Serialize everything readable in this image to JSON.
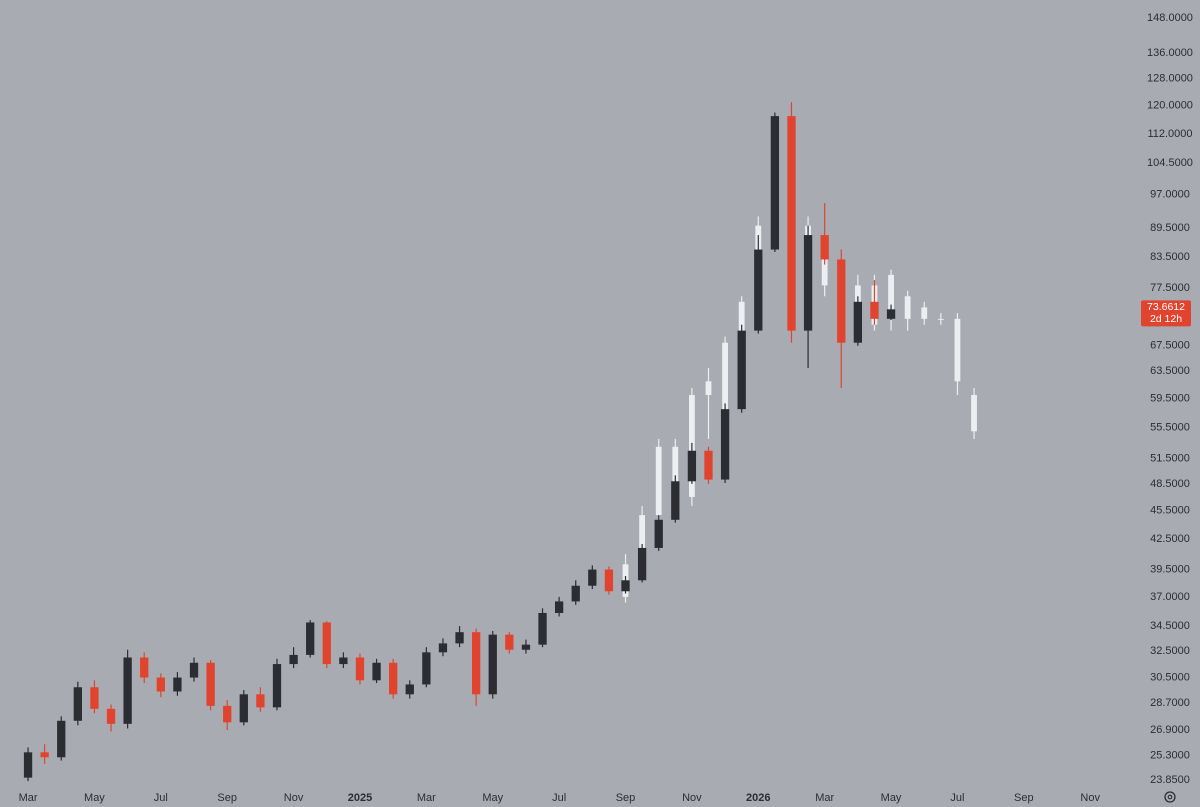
{
  "chart_data": {
    "type": "candlestick",
    "log_scale": true,
    "background": "#a9abb2",
    "ylim": [
      23.3,
      154.5
    ],
    "yticks": [
      {
        "value": 148,
        "label": "148.0000"
      },
      {
        "value": 136,
        "label": "136.0000"
      },
      {
        "value": 128,
        "label": "128.0000"
      },
      {
        "value": 120,
        "label": "120.0000"
      },
      {
        "value": 112,
        "label": "112.0000"
      },
      {
        "value": 104.5,
        "label": "104.5000"
      },
      {
        "value": 97,
        "label": "97.0000"
      },
      {
        "value": 89.5,
        "label": "89.5000"
      },
      {
        "value": 83.5,
        "label": "83.5000"
      },
      {
        "value": 77.5,
        "label": "77.5000"
      },
      {
        "value": 67.5,
        "label": "67.5000"
      },
      {
        "value": 63.5,
        "label": "63.5000"
      },
      {
        "value": 59.5,
        "label": "59.5000"
      },
      {
        "value": 55.5,
        "label": "55.5000"
      },
      {
        "value": 51.5,
        "label": "51.5000"
      },
      {
        "value": 48.5,
        "label": "48.5000"
      },
      {
        "value": 45.5,
        "label": "45.5000"
      },
      {
        "value": 42.5,
        "label": "42.5000"
      },
      {
        "value": 39.5,
        "label": "39.5000"
      },
      {
        "value": 37,
        "label": "37.0000"
      },
      {
        "value": 34.5,
        "label": "34.5000"
      },
      {
        "value": 32.5,
        "label": "32.5000"
      },
      {
        "value": 30.5,
        "label": "30.5000"
      },
      {
        "value": 28.7,
        "label": "28.7000"
      },
      {
        "value": 26.9,
        "label": "26.9000"
      },
      {
        "value": 25.3,
        "label": "25.3000"
      },
      {
        "value": 23.85,
        "label": "23.8500"
      }
    ],
    "xlim": [
      -1.69,
      67.0
    ],
    "xticks": [
      {
        "value": 0,
        "label": "Mar"
      },
      {
        "value": 4,
        "label": "May"
      },
      {
        "value": 8,
        "label": "Jul"
      },
      {
        "value": 12,
        "label": "Sep"
      },
      {
        "value": 16,
        "label": "Nov"
      },
      {
        "value": 20,
        "label": "2025"
      },
      {
        "value": 24,
        "label": "Mar"
      },
      {
        "value": 28,
        "label": "May"
      },
      {
        "value": 32,
        "label": "Jul"
      },
      {
        "value": 36,
        "label": "Sep"
      },
      {
        "value": 40,
        "label": "Nov"
      },
      {
        "value": 44,
        "label": "2026"
      },
      {
        "value": 48,
        "label": "Mar"
      },
      {
        "value": 52,
        "label": "May"
      },
      {
        "value": 56,
        "label": "Jul"
      },
      {
        "value": 60,
        "label": "Sep"
      },
      {
        "value": 64,
        "label": "Nov"
      }
    ],
    "last_price": 73.6612,
    "last_price_color": "#e0442f",
    "countdown": "2d 12h",
    "series": [
      {
        "up_color": "#2b2d33",
        "down_color": "#e0442f",
        "open": [
          24.0,
          25.5,
          25.2,
          27.5,
          29.8,
          28.3,
          27.3,
          32.0,
          30.5,
          29.5,
          30.5,
          31.6,
          28.5,
          27.4,
          29.3,
          28.4,
          31.5,
          32.2,
          34.8,
          31.5,
          32.0,
          30.3,
          31.6,
          29.3,
          30.0,
          32.4,
          33.1,
          34.0,
          29.3,
          33.8,
          32.6,
          33.0,
          35.6,
          36.6,
          38.0,
          39.5,
          37.5,
          38.5,
          41.6,
          44.5,
          48.8,
          52.5,
          49.0,
          58.0,
          70.0,
          85.0,
          117,
          70.0,
          88.0,
          83.0,
          68.0,
          75.0,
          72.0
        ],
        "high": [
          25.8,
          26.0,
          27.8,
          30.2,
          30.3,
          28.6,
          32.6,
          32.4,
          30.8,
          30.9,
          32.0,
          31.8,
          28.9,
          29.6,
          29.8,
          31.9,
          32.8,
          35.0,
          34.9,
          32.4,
          32.3,
          31.9,
          31.9,
          30.3,
          32.8,
          33.5,
          34.5,
          34.3,
          34.1,
          34.0,
          33.4,
          36.0,
          37.0,
          38.5,
          39.9,
          39.8,
          38.9,
          42.0,
          45.0,
          49.5,
          53.5,
          53.0,
          58.8,
          71.0,
          88.0,
          118,
          121,
          90.0,
          95.0,
          85.0,
          76.0,
          79.0,
          74.5
        ],
        "low": [
          23.8,
          24.8,
          25.0,
          27.2,
          28.0,
          26.8,
          27.0,
          30.1,
          29.1,
          29.2,
          30.2,
          28.2,
          26.9,
          27.2,
          28.1,
          28.2,
          31.2,
          32.0,
          31.2,
          31.2,
          30.0,
          30.1,
          29.0,
          29.0,
          29.8,
          32.1,
          32.8,
          28.5,
          29.0,
          32.3,
          32.3,
          32.8,
          35.3,
          36.3,
          37.7,
          37.2,
          37.3,
          38.3,
          41.3,
          44.2,
          48.5,
          48.5,
          48.6,
          57.5,
          69.5,
          84.5,
          68.0,
          64.0,
          82.0,
          61.0,
          67.5,
          71.0,
          71.8
        ],
        "close": [
          25.5,
          25.2,
          27.5,
          29.8,
          28.3,
          27.3,
          32.0,
          30.5,
          29.5,
          30.5,
          31.6,
          28.5,
          27.4,
          29.3,
          28.4,
          31.5,
          32.2,
          34.8,
          31.5,
          32.0,
          30.3,
          31.6,
          29.3,
          30.0,
          32.4,
          33.1,
          34.0,
          29.3,
          33.8,
          32.6,
          33.0,
          35.6,
          36.6,
          38.0,
          39.5,
          37.5,
          38.5,
          41.6,
          44.5,
          48.8,
          52.5,
          49.0,
          58.0,
          70.0,
          85.0,
          117,
          70.0,
          88.0,
          83.0,
          68.0,
          75.0,
          72.0,
          73.6612
        ]
      },
      {
        "color": "#eceef2",
        "open": [
          null,
          null,
          null,
          null,
          null,
          null,
          null,
          null,
          null,
          null,
          null,
          null,
          null,
          null,
          null,
          null,
          null,
          null,
          null,
          null,
          null,
          null,
          null,
          null,
          null,
          null,
          null,
          null,
          null,
          null,
          null,
          null,
          null,
          null,
          null,
          null,
          37,
          40,
          45,
          53,
          47,
          60,
          56,
          68,
          75,
          90,
          105,
          90,
          86,
          80,
          74,
          78,
          72,
          76,
          72,
          72,
          72,
          60
        ],
        "high": [
          null,
          null,
          null,
          null,
          null,
          null,
          null,
          null,
          null,
          null,
          null,
          null,
          null,
          null,
          null,
          null,
          null,
          null,
          null,
          null,
          null,
          null,
          null,
          null,
          null,
          null,
          null,
          null,
          null,
          null,
          null,
          null,
          null,
          null,
          null,
          null,
          41,
          46,
          54,
          54,
          61,
          64,
          69,
          76,
          92,
          115,
          108,
          92,
          88,
          82,
          80,
          80,
          81,
          77,
          75,
          73,
          73,
          61
        ],
        "low": [
          null,
          null,
          null,
          null,
          null,
          null,
          null,
          null,
          null,
          null,
          null,
          null,
          null,
          null,
          null,
          null,
          null,
          null,
          null,
          null,
          null,
          null,
          null,
          null,
          null,
          null,
          null,
          null,
          null,
          null,
          null,
          null,
          null,
          null,
          null,
          null,
          36.5,
          39.5,
          44.5,
          45,
          46,
          54,
          55,
          66,
          73,
          88,
          80,
          78,
          76,
          72,
          72,
          70,
          70,
          70,
          71,
          71,
          60,
          54
        ],
        "close": [
          null,
          null,
          null,
          null,
          null,
          null,
          null,
          null,
          null,
          null,
          null,
          null,
          null,
          null,
          null,
          null,
          null,
          null,
          null,
          null,
          null,
          null,
          null,
          null,
          null,
          null,
          null,
          null,
          null,
          null,
          null,
          null,
          null,
          null,
          null,
          null,
          40,
          45,
          53,
          46,
          60,
          62,
          68,
          75,
          90,
          105,
          90,
          80,
          78,
          74,
          78,
          71,
          80,
          72,
          74,
          72,
          62,
          55
        ]
      }
    ]
  }
}
